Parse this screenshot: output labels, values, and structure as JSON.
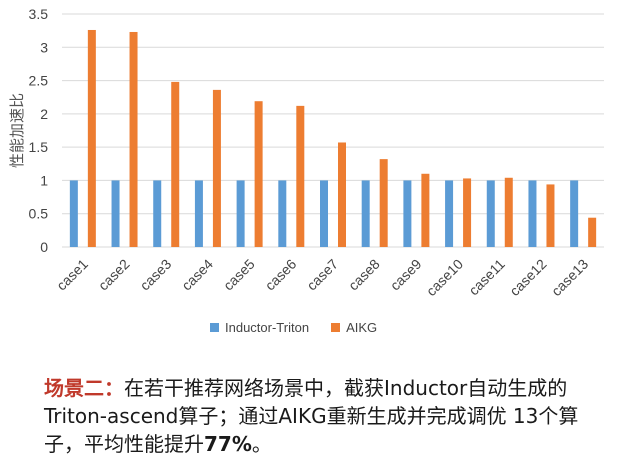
{
  "chart_data": {
    "type": "bar",
    "ylabel": "性能加速比",
    "ylim": [
      0,
      3.5
    ],
    "yticks": [
      "0",
      "0.5",
      "1",
      "1.5",
      "2",
      "2.5",
      "3",
      "3.5"
    ],
    "grid": true,
    "legend_position": "bottom",
    "categories": [
      "case1",
      "case2",
      "case3",
      "case4",
      "case5",
      "case6",
      "case7",
      "case8",
      "case9",
      "case10",
      "case11",
      "case12",
      "case13"
    ],
    "series": [
      {
        "name": "Inductor-Triton",
        "color": "#5b9bd5",
        "values": [
          1,
          1,
          1,
          1,
          1,
          1,
          1,
          1,
          1,
          1,
          1,
          1,
          1
        ]
      },
      {
        "name": "AIKG",
        "color": "#ed7d31",
        "values": [
          3.26,
          3.23,
          2.48,
          2.36,
          2.19,
          2.12,
          1.57,
          1.32,
          1.1,
          1.03,
          1.04,
          0.94,
          0.44
        ]
      }
    ]
  },
  "caption": {
    "prefix": "场景二：",
    "body": "在若干推荐网络场景中，截获Inductor自动生成的Triton-ascend算子；通过AIKG重新生成并完成调优 13个算子，平均性能提升",
    "percent": "77%",
    "suffix": "。"
  }
}
